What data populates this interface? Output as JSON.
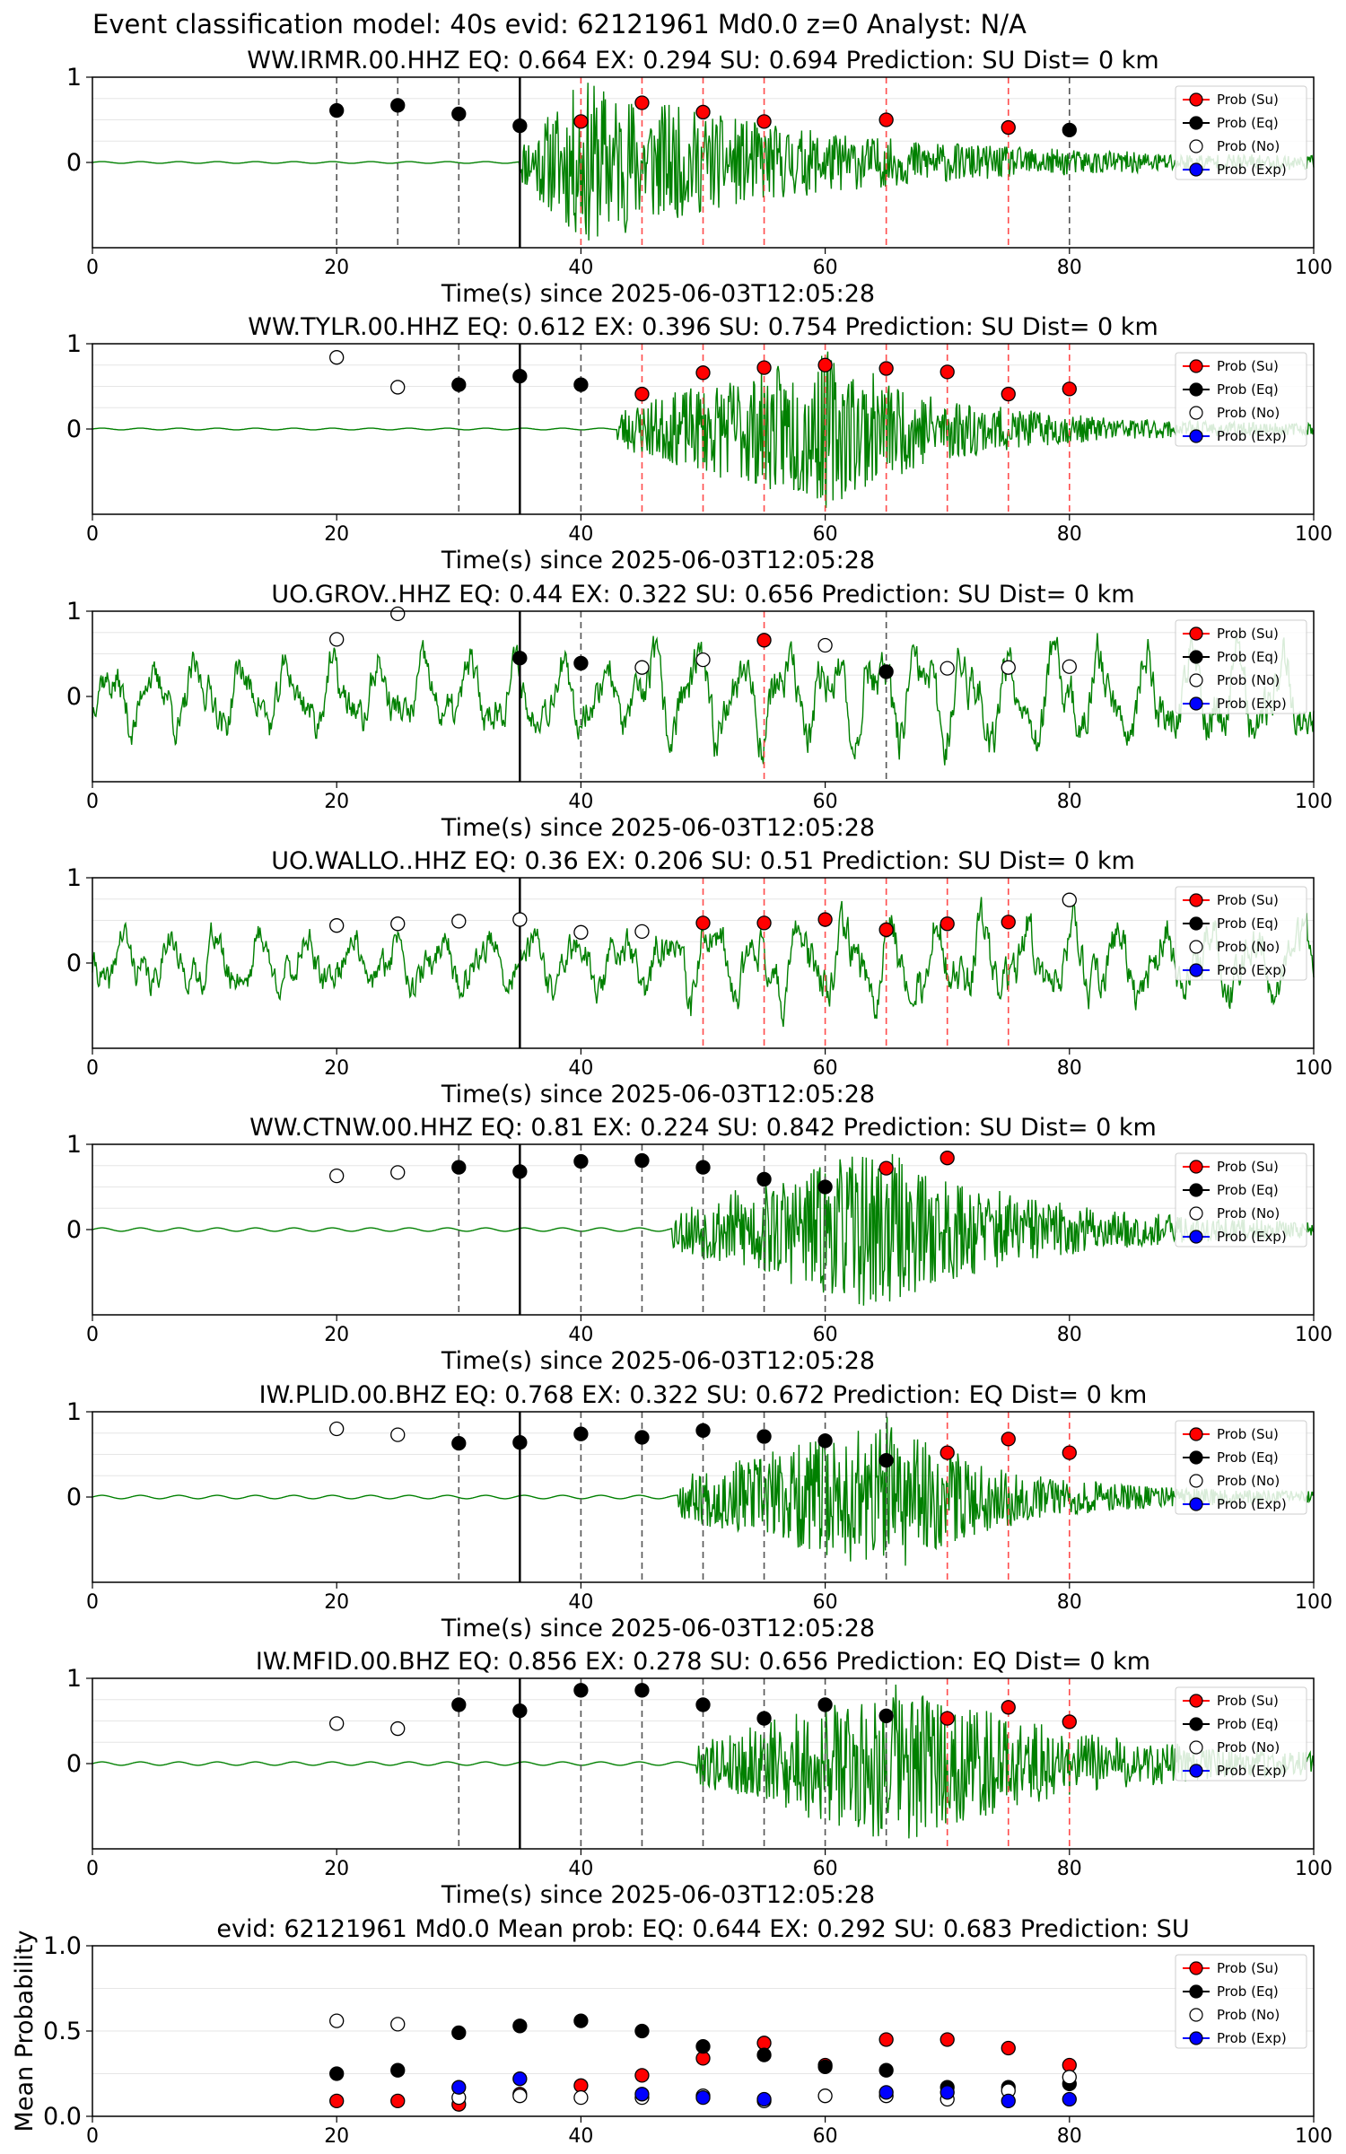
{
  "figure_title": "Event classification model: 40s evid: 62121961 Md0.0 z=0 Analyst: N/A",
  "common": {
    "xlabel": "Time(s) since 2025-06-03T12:05:28",
    "xticks": [
      "0",
      "20",
      "40",
      "60",
      "80",
      "100"
    ],
    "yticks": [
      "0",
      "1"
    ],
    "legend": [
      "Prob (Su)",
      "Prob (Eq)",
      "Prob (No)",
      "Prob (Exp)"
    ],
    "legend_colors": [
      "#ff0000",
      "#000000",
      "#ffffff",
      "#0000ff"
    ]
  },
  "chart_data": [
    {
      "type": "scatter",
      "title": "WW.IRMR.00.HHZ   EQ: 0.664  EX: 0.294  SU: 0.694   Prediction: SU    Dist= 0 km",
      "xlim": [
        0,
        100
      ],
      "ylim": [
        -1,
        1
      ],
      "waveform": {
        "color": "#008000",
        "onset": 35,
        "peak": 40,
        "amp_pre": 0.01,
        "amp_max": 0.95,
        "decay": 18,
        "seed": 11,
        "kind": "quiet"
      },
      "windows": [
        20,
        25,
        30,
        35,
        40,
        45,
        50,
        55,
        65,
        75,
        80
      ],
      "window_class": [
        "eq",
        "eq",
        "eq",
        "eq",
        "su",
        "su",
        "su",
        "su",
        "su",
        "su",
        "eq"
      ],
      "probs": [
        0.61,
        0.67,
        0.57,
        0.43,
        0.48,
        0.7,
        0.59,
        0.48,
        0.5,
        0.41,
        0.38
      ],
      "marker_class": [
        "eq",
        "eq",
        "eq",
        "eq",
        "su",
        "su",
        "su",
        "su",
        "su",
        "su",
        "eq"
      ]
    },
    {
      "type": "scatter",
      "title": "WW.TYLR.00.HHZ   EQ: 0.612  EX: 0.396  SU: 0.754   Prediction: SU    Dist= 0 km",
      "xlim": [
        0,
        100
      ],
      "ylim": [
        -1,
        1
      ],
      "waveform": {
        "color": "#008000",
        "onset": 43,
        "peak": 60,
        "amp_pre": 0.01,
        "amp_max": 0.9,
        "decay": 10,
        "seed": 23,
        "kind": "quiet"
      },
      "windows": [
        30,
        35,
        40,
        45,
        50,
        55,
        60,
        65,
        70,
        75,
        80
      ],
      "window_class": [
        "eq",
        "eq",
        "eq",
        "su",
        "su",
        "su",
        "su",
        "su",
        "su",
        "su",
        "su"
      ],
      "probs": [
        0.84,
        0.49,
        0.52,
        0.62,
        0.52,
        0.41,
        0.66,
        0.72,
        0.75,
        0.71,
        0.67,
        0.41,
        0.47
      ],
      "marker_x": [
        20,
        25,
        30,
        35,
        40,
        45,
        50,
        55,
        60,
        65,
        70,
        75,
        80
      ],
      "marker_probs": [
        0.84,
        0.49,
        0.52,
        0.62,
        0.52,
        0.41,
        0.66,
        0.72,
        0.75,
        0.71,
        0.67,
        0.41,
        0.47
      ],
      "marker_class": [
        "no",
        "no",
        "eq",
        "eq",
        "eq",
        "su",
        "su",
        "su",
        "su",
        "su",
        "su",
        "su",
        "su"
      ]
    },
    {
      "type": "scatter",
      "title": "UO.GROV..HHZ   EQ: 0.44  EX: 0.322  SU: 0.656   Prediction: SU    Dist= 0 km",
      "xlim": [
        0,
        100
      ],
      "ylim": [
        -1,
        1
      ],
      "waveform": {
        "color": "#008000",
        "onset": 0,
        "peak": 55,
        "amp_pre": 0.5,
        "amp_max": 0.8,
        "decay": 30,
        "seed": 37,
        "kind": "noisy"
      },
      "windows": [
        35,
        40,
        55,
        65
      ],
      "window_class": [
        "eq",
        "eq",
        "su",
        "eq"
      ],
      "marker_x": [
        20,
        25,
        35,
        40,
        45,
        50,
        55,
        60,
        65,
        70,
        75,
        80
      ],
      "marker_probs": [
        0.67,
        0.97,
        0.45,
        0.39,
        0.34,
        0.43,
        0.66,
        0.6,
        0.29,
        0.33,
        0.34,
        0.35
      ],
      "marker_class": [
        "no",
        "no",
        "eq",
        "eq",
        "no",
        "no",
        "su",
        "no",
        "eq",
        "no",
        "no",
        "no"
      ]
    },
    {
      "type": "scatter",
      "title": "UO.WALLO..HHZ   EQ: 0.36  EX: 0.206  SU: 0.51   Prediction: SU    Dist= 0 km",
      "xlim": [
        0,
        100
      ],
      "ylim": [
        -1,
        1
      ],
      "waveform": {
        "color": "#008000",
        "onset": 0,
        "peak": 60,
        "amp_pre": 0.45,
        "amp_max": 0.7,
        "decay": 40,
        "seed": 41,
        "kind": "noisy"
      },
      "windows": [
        35,
        50,
        55,
        60,
        65,
        70,
        75
      ],
      "window_class": [
        "eq",
        "su",
        "su",
        "su",
        "su",
        "su",
        "su"
      ],
      "marker_x": [
        20,
        25,
        30,
        35,
        40,
        45,
        50,
        55,
        60,
        65,
        70,
        75,
        80
      ],
      "marker_probs": [
        0.44,
        0.46,
        0.49,
        0.51,
        0.36,
        0.37,
        0.47,
        0.47,
        0.51,
        0.39,
        0.46,
        0.48,
        0.74
      ],
      "marker_class": [
        "no",
        "no",
        "no",
        "no",
        "no",
        "no",
        "su",
        "su",
        "su",
        "su",
        "su",
        "su",
        "no"
      ]
    },
    {
      "type": "scatter",
      "title": "WW.CTNW.00.HHZ   EQ: 0.81  EX: 0.224  SU: 0.842   Prediction: SU    Dist= 0 km",
      "xlim": [
        0,
        100
      ],
      "ylim": [
        -1,
        1
      ],
      "waveform": {
        "color": "#008000",
        "onset": 47.5,
        "peak": 64,
        "amp_pre": 0.02,
        "amp_max": 0.95,
        "decay": 12,
        "seed": 53,
        "kind": "quiet"
      },
      "windows": [
        30,
        35,
        40,
        45,
        50,
        55,
        60
      ],
      "window_class": [
        "eq",
        "eq",
        "eq",
        "eq",
        "eq",
        "eq",
        "eq"
      ],
      "marker_x": [
        20,
        25,
        30,
        35,
        40,
        45,
        50,
        55,
        60,
        65,
        70
      ],
      "marker_probs": [
        0.63,
        0.67,
        0.73,
        0.68,
        0.8,
        0.81,
        0.73,
        0.59,
        0.5,
        0.72,
        0.84
      ],
      "marker_class": [
        "no",
        "no",
        "eq",
        "eq",
        "eq",
        "eq",
        "eq",
        "eq",
        "eq",
        "su",
        "su"
      ]
    },
    {
      "type": "scatter",
      "title": "IW.PLID.00.BHZ   EQ: 0.768  EX: 0.322  SU: 0.672   Prediction: EQ    Dist= 0 km",
      "xlim": [
        0,
        100
      ],
      "ylim": [
        -1,
        1
      ],
      "waveform": {
        "color": "#008000",
        "onset": 48,
        "peak": 65,
        "amp_pre": 0.02,
        "amp_max": 0.9,
        "decay": 9,
        "seed": 67,
        "kind": "quiet"
      },
      "windows": [
        30,
        35,
        40,
        45,
        50,
        55,
        60,
        65,
        70,
        75,
        80
      ],
      "window_class": [
        "eq",
        "eq",
        "eq",
        "eq",
        "eq",
        "eq",
        "eq",
        "eq",
        "su",
        "su",
        "su"
      ],
      "marker_x": [
        20,
        25,
        30,
        35,
        40,
        45,
        50,
        55,
        60,
        65,
        70,
        75,
        80
      ],
      "marker_probs": [
        0.8,
        0.73,
        0.63,
        0.64,
        0.74,
        0.7,
        0.78,
        0.71,
        0.66,
        0.43,
        0.52,
        0.68,
        0.52
      ],
      "marker_class": [
        "no",
        "no",
        "eq",
        "eq",
        "eq",
        "eq",
        "eq",
        "eq",
        "eq",
        "eq",
        "su",
        "su",
        "su"
      ]
    },
    {
      "type": "scatter",
      "title": "IW.MFID.00.BHZ   EQ: 0.856  EX: 0.278  SU: 0.656   Prediction: EQ    Dist= 0 km",
      "xlim": [
        0,
        100
      ],
      "ylim": [
        -1,
        1
      ],
      "waveform": {
        "color": "#008000",
        "onset": 49.5,
        "peak": 66,
        "amp_pre": 0.02,
        "amp_max": 0.95,
        "decay": 14,
        "seed": 79,
        "kind": "quiet"
      },
      "windows": [
        30,
        35,
        40,
        45,
        50,
        55,
        60,
        65,
        70,
        75,
        80
      ],
      "window_class": [
        "eq",
        "eq",
        "eq",
        "eq",
        "eq",
        "eq",
        "eq",
        "eq",
        "su",
        "su",
        "su"
      ],
      "marker_x": [
        20,
        25,
        30,
        35,
        40,
        45,
        50,
        55,
        60,
        65,
        70,
        75,
        80
      ],
      "marker_probs": [
        0.47,
        0.41,
        0.69,
        0.62,
        0.86,
        0.86,
        0.69,
        0.53,
        0.69,
        0.56,
        0.53,
        0.66,
        0.49
      ],
      "marker_class": [
        "no",
        "no",
        "eq",
        "eq",
        "eq",
        "eq",
        "eq",
        "eq",
        "eq",
        "eq",
        "su",
        "su",
        "su"
      ]
    },
    {
      "type": "scatter",
      "title": "evid: 62121961  Md0.0   Mean prob:   EQ: 0.644  EX: 0.292  SU: 0.683   Prediction: SU",
      "ylabel": "Mean Probability",
      "xlim": [
        0,
        100
      ],
      "ylim": [
        0,
        1
      ],
      "yticks": [
        "0.0",
        "0.5",
        "1.0"
      ],
      "x": [
        20,
        25,
        30,
        35,
        40,
        45,
        50,
        55,
        60,
        65,
        70,
        75,
        80
      ],
      "series": [
        {
          "name": "Prob (Su)",
          "color": "#ff0000",
          "values": [
            0.09,
            0.09,
            0.07,
            0.13,
            0.18,
            0.24,
            0.34,
            0.43,
            0.3,
            0.45,
            0.45,
            0.4,
            0.3
          ]
        },
        {
          "name": "Prob (Eq)",
          "color": "#000000",
          "values": [
            0.25,
            0.27,
            0.49,
            0.53,
            0.56,
            0.5,
            0.41,
            0.36,
            0.29,
            0.27,
            0.17,
            0.17,
            0.19
          ]
        },
        {
          "name": "Prob (No)",
          "color": "#ffffff",
          "values": [
            0.56,
            0.54,
            0.11,
            0.12,
            0.11,
            0.11,
            0.12,
            0.09,
            0.12,
            0.12,
            0.1,
            0.15,
            0.23
          ]
        },
        {
          "name": "Prob (Exp)",
          "color": "#0000ff",
          "values": [
            null,
            null,
            0.17,
            0.22,
            null,
            0.13,
            0.11,
            0.1,
            null,
            0.14,
            0.14,
            0.09,
            0.1
          ]
        }
      ]
    }
  ]
}
